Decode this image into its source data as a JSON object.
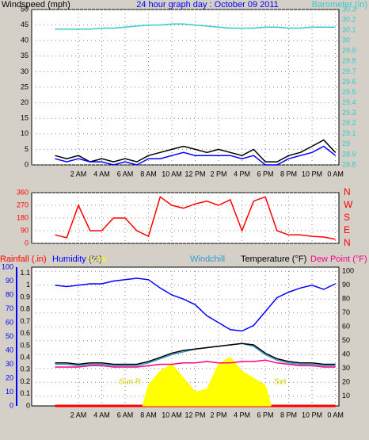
{
  "chart_data": [
    {
      "type": "line",
      "title": "24 hour graph day : October 09 2011",
      "ylabel": "Windspeed (mph)",
      "y2label": "Barometer (in)",
      "x": [
        0,
        1,
        2,
        3,
        4,
        5,
        6,
        7,
        8,
        9,
        10,
        11,
        12,
        13,
        14,
        15,
        16,
        17,
        18,
        19,
        20,
        21,
        22,
        23,
        24
      ],
      "series": [
        {
          "color": "#000000",
          "values": [
            3,
            2,
            3,
            1,
            2,
            1,
            2,
            1,
            3,
            4,
            5,
            6,
            5,
            4,
            5,
            4,
            3,
            5,
            1,
            1,
            3,
            4,
            6,
            8,
            4
          ]
        },
        {
          "color": "#0000ff",
          "values": [
            2,
            1,
            2,
            1,
            1,
            0,
            1,
            0,
            2,
            2,
            3,
            4,
            3,
            3,
            3,
            3,
            2,
            3,
            0,
            0,
            2,
            3,
            4,
            6,
            3
          ]
        },
        {
          "color": "#33cccc",
          "axis": "y2",
          "values": [
            30.11,
            30.11,
            30.11,
            30.11,
            30.12,
            30.12,
            30.13,
            30.14,
            30.15,
            30.15,
            30.16,
            30.16,
            30.15,
            30.14,
            30.13,
            30.12,
            30.12,
            30.12,
            30.13,
            30.13,
            30.12,
            30.12,
            30.13,
            30.13,
            30.13
          ]
        }
      ],
      "xlim": [
        -2,
        24.3
      ],
      "xticks": [
        {
          "value": 2,
          "label": "2 AM"
        },
        {
          "value": 4,
          "label": "4 AM"
        },
        {
          "value": 6,
          "label": "6 AM"
        },
        {
          "value": 8,
          "label": "8 AM"
        },
        {
          "value": 10,
          "label": "10 AM"
        },
        {
          "value": 12,
          "label": "12 PM"
        },
        {
          "value": 14,
          "label": "2 PM"
        },
        {
          "value": 16,
          "label": "4 PM"
        },
        {
          "value": 18,
          "label": "6 PM"
        },
        {
          "value": 20,
          "label": "8 PM"
        },
        {
          "value": 22,
          "label": "10 PM"
        },
        {
          "value": 24,
          "label": "0 AM"
        }
      ],
      "ylim": [
        0,
        50
      ],
      "yticks": [
        0,
        5,
        10,
        15,
        20,
        25,
        30,
        35,
        40,
        45,
        50
      ],
      "y2lim": [
        28.8,
        30.3
      ],
      "y2ticks": [
        28.8,
        28.9,
        29,
        29.1,
        29.2,
        29.3,
        29.4,
        29.5,
        29.6,
        29.7,
        29.8,
        29.9,
        30,
        30.1,
        30.2,
        30.3
      ],
      "grid": "y"
    },
    {
      "type": "line",
      "x": [
        0,
        1,
        2,
        3,
        4,
        5,
        6,
        7,
        8,
        9,
        10,
        11,
        12,
        13,
        14,
        15,
        16,
        17,
        18,
        19,
        20,
        21,
        22,
        23,
        24
      ],
      "series": [
        {
          "color": "#ff0000",
          "values": [
            60,
            40,
            270,
            90,
            90,
            180,
            180,
            90,
            50,
            330,
            270,
            250,
            280,
            300,
            270,
            310,
            90,
            300,
            330,
            90,
            60,
            60,
            50,
            45,
            30
          ]
        }
      ],
      "xlim": [
        -2,
        24.3
      ],
      "xticks": [
        2,
        4,
        6,
        8,
        10,
        12,
        14,
        16,
        18,
        20,
        22,
        24
      ],
      "ylim": [
        0,
        360
      ],
      "yticks": [
        0,
        90,
        180,
        270,
        360
      ],
      "y2lim": [
        0,
        360
      ],
      "y2ticks": [
        {
          "value": 0,
          "label": "N"
        },
        {
          "value": 90,
          "label": "E"
        },
        {
          "value": 180,
          "label": "S"
        },
        {
          "value": 270,
          "label": "W"
        },
        {
          "value": 360,
          "label": "N"
        }
      ],
      "grid": "y"
    },
    {
      "type": "line",
      "x": [
        0,
        1,
        2,
        3,
        4,
        5,
        6,
        7,
        8,
        9,
        10,
        11,
        12,
        13,
        14,
        15,
        16,
        17,
        18,
        19,
        20,
        21,
        22,
        23,
        24
      ],
      "series": [
        {
          "name": "Rainfall (.in)",
          "color": "#ff0000",
          "values": [
            0,
            0,
            0,
            0,
            0,
            0,
            0,
            0,
            0,
            0,
            0,
            0,
            0,
            0,
            0,
            0,
            0,
            0,
            0,
            0,
            0,
            0,
            0,
            0,
            0
          ]
        },
        {
          "name": "Humidity (%)",
          "color": "#0000ff",
          "axis": "y3",
          "values": [
            87,
            86,
            87,
            88,
            88,
            90,
            91,
            92,
            91,
            85,
            80,
            77,
            73,
            65,
            60,
            55,
            54,
            58,
            68,
            78,
            82,
            85,
            87,
            84,
            88
          ]
        },
        {
          "name": "Solar",
          "color": "#ffff00",
          "axis": "y3",
          "x": [
            7.5,
            8,
            9,
            10,
            11,
            12,
            13,
            14,
            15,
            16,
            17,
            18,
            18.5
          ],
          "values": [
            0,
            15,
            25,
            30,
            20,
            10,
            12,
            30,
            35,
            25,
            20,
            15,
            0
          ]
        },
        {
          "name": "Windchill",
          "color": "#3399cc",
          "axis": "y2",
          "values": [
            33,
            33,
            32,
            33,
            33,
            32,
            32,
            32,
            34,
            37,
            40,
            42,
            44,
            45,
            46,
            47,
            48,
            46,
            40,
            36,
            34,
            33,
            33,
            32,
            32
          ]
        },
        {
          "name": "Temperature (°F)",
          "color": "#000000",
          "axis": "y2",
          "values": [
            34,
            34,
            33,
            34,
            34,
            33,
            33,
            33,
            35,
            38,
            41,
            43,
            44,
            45,
            46,
            47,
            48,
            47,
            41,
            37,
            35,
            34,
            34,
            33,
            33
          ]
        },
        {
          "name": "Dew Point (°F)",
          "color": "#ff0080",
          "axis": "y2",
          "values": [
            31,
            31,
            31,
            32,
            32,
            31,
            31,
            31,
            32,
            33,
            33,
            34,
            34,
            35,
            34,
            34,
            35,
            35,
            36,
            34,
            33,
            32,
            32,
            31,
            31
          ]
        }
      ],
      "annotations": [
        {
          "text": "Sun R",
          "x": 7.5
        },
        {
          "text": "Set",
          "x": 18.5
        }
      ],
      "xlim": [
        -2,
        24.3
      ],
      "xticks": [
        {
          "value": 2,
          "label": "2 AM"
        },
        {
          "value": 4,
          "label": "4 AM"
        },
        {
          "value": 6,
          "label": "6 AM"
        },
        {
          "value": 8,
          "label": "8 AM"
        },
        {
          "value": 10,
          "label": "10 AM"
        },
        {
          "value": 12,
          "label": "12 PM"
        },
        {
          "value": 14,
          "label": "2 PM"
        },
        {
          "value": 16,
          "label": "4 PM"
        },
        {
          "value": 18,
          "label": "6 PM"
        },
        {
          "value": 20,
          "label": "8 PM"
        },
        {
          "value": 22,
          "label": "10 PM"
        },
        {
          "value": 24,
          "label": "0 AM"
        }
      ],
      "ylim": [
        0,
        1.15
      ],
      "yticks": [
        0,
        0.1,
        0.2,
        0.3,
        0.4,
        0.5,
        0.6,
        0.7,
        0.8,
        0.9,
        1,
        1.1
      ],
      "y2lim": [
        3,
        103
      ],
      "y2ticks": [
        10,
        20,
        30,
        40,
        50,
        60,
        70,
        80,
        90,
        100
      ],
      "y3lim": [
        0,
        100
      ],
      "y3ticks": [
        0,
        10,
        20,
        30,
        40,
        50,
        60,
        70,
        80,
        90,
        100
      ],
      "grid": "y2"
    }
  ]
}
